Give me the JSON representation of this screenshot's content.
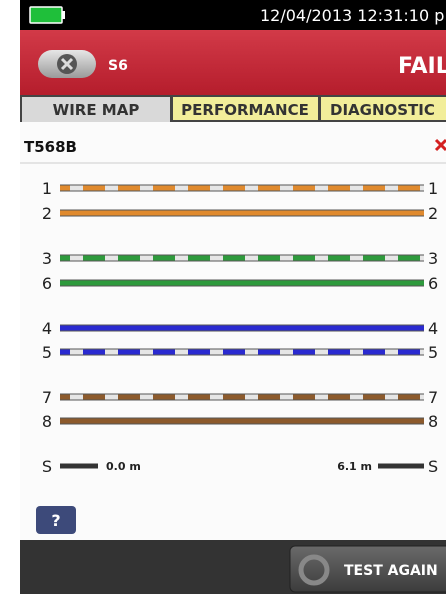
{
  "status_bar": {
    "datetime": "12/04/2013 12:31:10 p"
  },
  "header": {
    "test_name": "S6",
    "result": "FAIL"
  },
  "tabs": [
    "WIRE MAP",
    "PERFORMANCE",
    "DIAGNOSTIC"
  ],
  "wire_map": {
    "standard": "T568B",
    "wires": [
      {
        "left": "1",
        "right": "1",
        "color": "#e08a2e",
        "striped": true
      },
      {
        "left": "2",
        "right": "2",
        "color": "#e08a2e",
        "striped": false
      },
      {
        "left": "3",
        "right": "3",
        "color": "#2e9a3c",
        "striped": true
      },
      {
        "left": "6",
        "right": "6",
        "color": "#2e9a3c",
        "striped": false
      },
      {
        "left": "4",
        "right": "4",
        "color": "#2a2ad0",
        "striped": false
      },
      {
        "left": "5",
        "right": "5",
        "color": "#2a2ad0",
        "striped": true
      },
      {
        "left": "7",
        "right": "7",
        "color": "#8c5a2c",
        "striped": true
      },
      {
        "left": "8",
        "right": "8",
        "color": "#8c5a2c",
        "striped": false
      }
    ],
    "shield": {
      "left": "S",
      "right": "S",
      "near_length": "0.0 m",
      "far_length": "6.1 m"
    }
  },
  "help_button": "?",
  "footer": {
    "button": "TEST AGAIN"
  }
}
